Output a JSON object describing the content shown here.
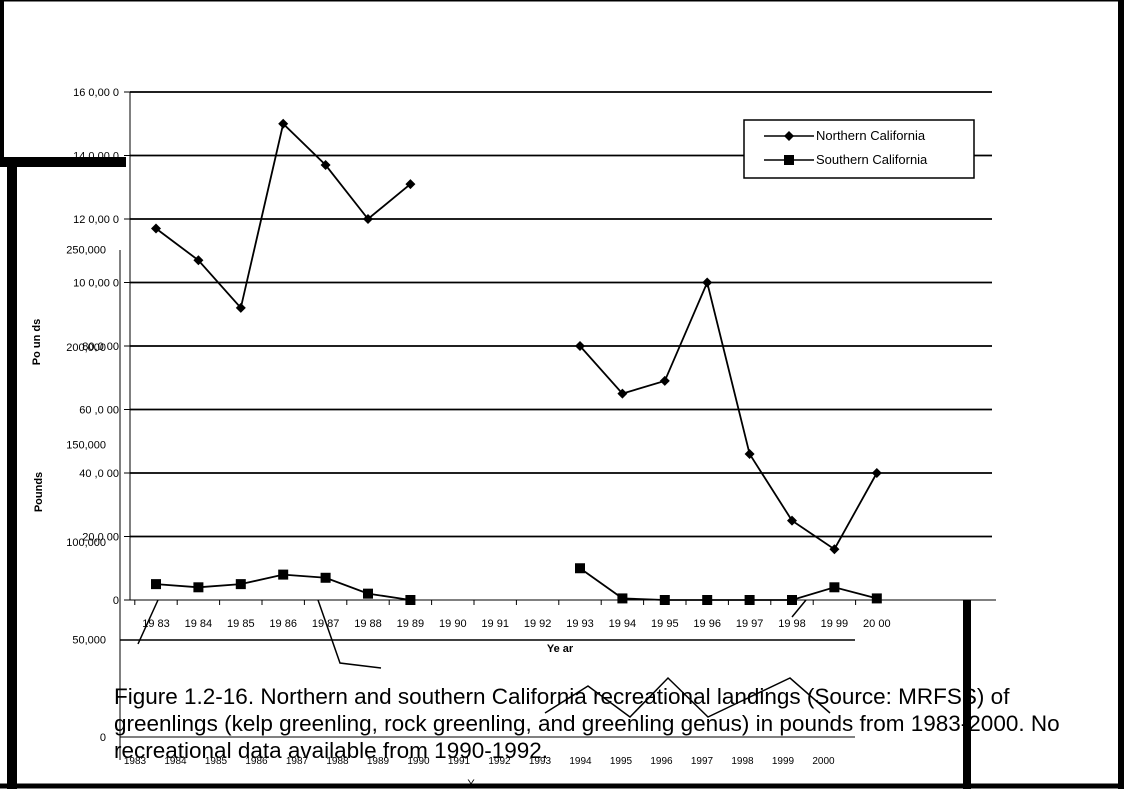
{
  "chart_data": [
    {
      "type": "line",
      "title": "",
      "xlabel": "Ye ar",
      "ylabel": "Po un ds",
      "ylim": [
        0,
        160000
      ],
      "grid": true,
      "legend": "top-right",
      "categories": [
        "19 83",
        "19 84",
        "19 85",
        "19 86",
        "19 87",
        "19 88",
        "19 89",
        "19 90",
        "19 91",
        "19 92",
        "19 93",
        "19 94",
        "19 95",
        "19 96",
        "19 97",
        "19 98",
        "19 99",
        "20 00"
      ],
      "yticks": [
        "0",
        "20,0 00",
        "40 ,0 00",
        "60 ,0 00",
        "80,0 00",
        "10 0,00 0",
        "12 0,00 0",
        "14 0,00 0",
        "16 0,00 0"
      ],
      "series": [
        {
          "name": "Northern California",
          "marker": "diamond",
          "values": [
            117000,
            107000,
            92000,
            150000,
            137000,
            120000,
            131000,
            null,
            null,
            null,
            80000,
            65000,
            69000,
            100000,
            46000,
            25000,
            16000,
            40000
          ]
        },
        {
          "name": "Southern California",
          "marker": "square",
          "values": [
            5000,
            4000,
            5000,
            8000,
            7000,
            2000,
            0,
            null,
            null,
            null,
            10000,
            500,
            0,
            0,
            0,
            0,
            4000,
            500
          ]
        }
      ]
    },
    {
      "type": "line",
      "title": "",
      "xlabel": "Y",
      "ylabel": "Pounds",
      "ylim": [
        0,
        250000
      ],
      "yticks": [
        "0",
        "50,000",
        "100,000",
        "150,000",
        "200,000",
        "250,000"
      ],
      "categories": [
        "1983",
        "1984",
        "1985",
        "1986",
        "1987",
        "1988",
        "1989",
        "1990",
        "1991",
        "1992",
        "1993",
        "1994",
        "1995",
        "1996",
        "1997",
        "1998",
        "1999",
        "2000"
      ],
      "series": [
        {
          "name": "",
          "values": [
            null,
            null,
            null,
            null,
            null,
            null,
            null,
            null,
            null,
            null,
            null,
            null,
            null,
            null,
            null,
            null,
            null,
            null
          ]
        }
      ]
    }
  ],
  "caption": "Figure 1.2-16.  Northern and southern California recreational landings (Source: MRFSS) of greenlings (kelp greenling, rock greenling, and greenling genus) in pounds from 1983-2000. No recreational data available from 1990-1992."
}
